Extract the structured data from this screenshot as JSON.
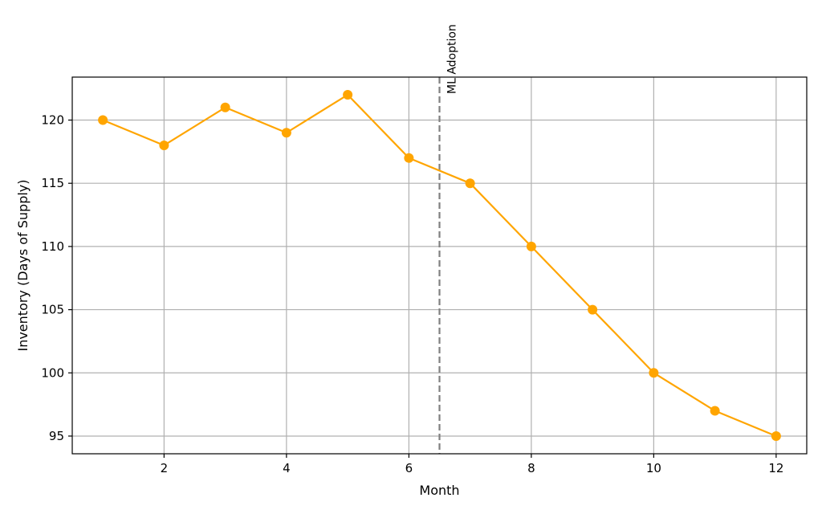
{
  "chart_data": {
    "type": "line",
    "title": "",
    "xlabel": "Month",
    "ylabel": "Inventory (Days of Supply)",
    "xlim": [
      0.5,
      12.5
    ],
    "ylim": [
      93.6,
      123.4
    ],
    "xticks": [
      2,
      4,
      6,
      8,
      10,
      12
    ],
    "yticks": [
      95,
      100,
      105,
      110,
      115,
      120
    ],
    "grid": true,
    "series": [
      {
        "x": [
          1,
          2,
          3,
          4,
          5,
          6,
          7,
          8,
          9,
          10,
          11,
          12
        ],
        "values": [
          120,
          118,
          121,
          119,
          122,
          117,
          115,
          110,
          105,
          100,
          97,
          95
        ],
        "color": "#FFA500",
        "marker": "circle"
      }
    ],
    "annotations": [
      {
        "type": "vertical-line",
        "x": 6.5,
        "style": "dashed",
        "color": "#808080",
        "label": "ML Adoption"
      }
    ]
  }
}
